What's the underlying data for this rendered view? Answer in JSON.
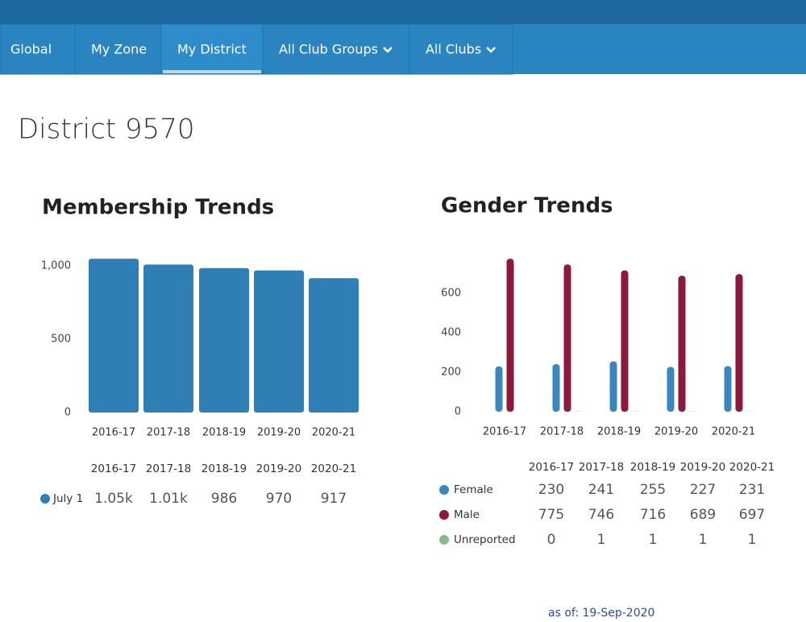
{
  "nav": {
    "items": [
      {
        "label": "Global"
      },
      {
        "label": "My Zone"
      },
      {
        "label": "My District",
        "active": true
      },
      {
        "label": "All Club Groups",
        "dropdown": true
      },
      {
        "label": "All Clubs",
        "dropdown": true
      }
    ]
  },
  "page_title": "District 9570",
  "chart_data": [
    {
      "type": "bar",
      "title": "Membership Trends",
      "categories": [
        "2016-17",
        "2017-18",
        "2018-19",
        "2019-20",
        "2020-21"
      ],
      "series": [
        {
          "name": "July 1",
          "color": "#2f7fb6",
          "values": [
            1050,
            1010,
            986,
            970,
            917
          ],
          "value_labels": [
            "1.05k",
            "1.01k",
            "986",
            "970",
            "917"
          ]
        }
      ],
      "ylim": [
        0,
        1100
      ],
      "yticks": [
        0,
        500,
        {
          "value": 1000,
          "label": "1,000"
        }
      ]
    },
    {
      "type": "bar",
      "title": "Gender Trends",
      "categories": [
        "2016-17",
        "2017-18",
        "2018-19",
        "2019-20",
        "2020-21"
      ],
      "series": [
        {
          "name": "Female",
          "color": "#3a87c0",
          "values": [
            230,
            241,
            255,
            227,
            231
          ]
        },
        {
          "name": "Male",
          "color": "#8c1a3c",
          "values": [
            775,
            746,
            716,
            689,
            697
          ]
        },
        {
          "name": "Unreported",
          "color": "#86bb84",
          "values": [
            0,
            1,
            1,
            1,
            1
          ]
        }
      ],
      "ylim": [
        0,
        800
      ],
      "yticks": [
        0,
        200,
        400,
        600
      ]
    }
  ],
  "footer": "as of: 19-Sep-2020"
}
